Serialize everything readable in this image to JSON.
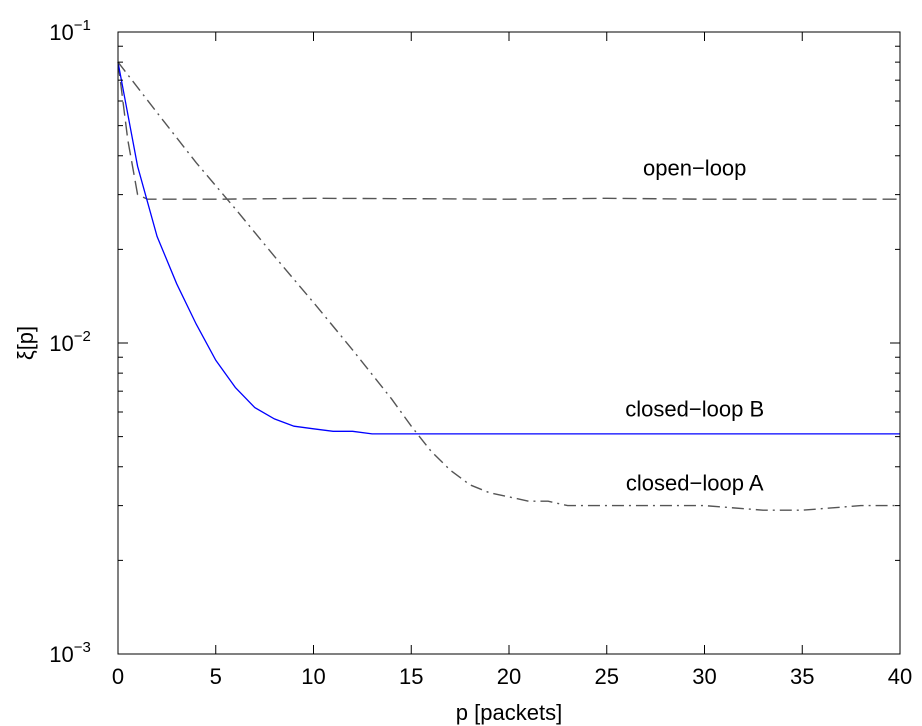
{
  "chart_data": {
    "type": "line",
    "title": "",
    "xlabel": "p [packets]",
    "ylabel": "ξ[p]",
    "xlim": [
      0,
      40
    ],
    "ylim": [
      0.001,
      0.1
    ],
    "yscale": "log",
    "grid": false,
    "legend": "none",
    "x_ticks": [
      0,
      5,
      10,
      15,
      20,
      25,
      30,
      35,
      40
    ],
    "x_tick_labels": [
      "0",
      "5",
      "10",
      "15",
      "20",
      "25",
      "30",
      "35",
      "40"
    ],
    "y_ticks": [
      0.001,
      0.01,
      0.1
    ],
    "y_tick_labels": [
      {
        "base": "10",
        "exp": "−3"
      },
      {
        "base": "10",
        "exp": "−2"
      },
      {
        "base": "10",
        "exp": "−1"
      }
    ],
    "series": [
      {
        "name": "open−loop",
        "color": "#555555",
        "dash": "dashed",
        "x": [
          0,
          0.5,
          1,
          1.5,
          2,
          5,
          10,
          15,
          20,
          25,
          30,
          35,
          40
        ],
        "y": [
          0.08,
          0.045,
          0.03,
          0.029,
          0.029,
          0.029,
          0.0292,
          0.0291,
          0.029,
          0.0292,
          0.029,
          0.029,
          0.029
        ]
      },
      {
        "name": "closed−loop B",
        "color": "#0000ff",
        "dash": "solid",
        "x": [
          0,
          1,
          2,
          3,
          4,
          5,
          6,
          7,
          8,
          9,
          10,
          11,
          12,
          13,
          14,
          15,
          17,
          20,
          23,
          25,
          28,
          30,
          33,
          35,
          38,
          40
        ],
        "y": [
          0.08,
          0.037,
          0.022,
          0.0155,
          0.0115,
          0.0088,
          0.0072,
          0.0062,
          0.0057,
          0.0054,
          0.0053,
          0.0052,
          0.0052,
          0.0051,
          0.0051,
          0.0051,
          0.0051,
          0.0051,
          0.0051,
          0.0051,
          0.0051,
          0.0051,
          0.0051,
          0.0051,
          0.0051,
          0.0051
        ]
      },
      {
        "name": "closed−loop A",
        "color": "#555555",
        "dash": "dashdot",
        "x": [
          0,
          2,
          4,
          6,
          8,
          10,
          12,
          14,
          15,
          16,
          17,
          18,
          19,
          20,
          21,
          22,
          23,
          25,
          28,
          30,
          33,
          35,
          38,
          40
        ],
        "y": [
          0.08,
          0.055,
          0.038,
          0.027,
          0.019,
          0.0135,
          0.0095,
          0.0066,
          0.0054,
          0.0045,
          0.0039,
          0.0035,
          0.0033,
          0.0032,
          0.0031,
          0.0031,
          0.003,
          0.003,
          0.003,
          0.003,
          0.0029,
          0.0029,
          0.003,
          0.003
        ]
      }
    ],
    "annotations": [
      {
        "text": "open−loop",
        "x": 29.5,
        "y": 0.0345
      },
      {
        "text": "closed−loop B",
        "x": 29.5,
        "y": 0.0058
      },
      {
        "text": "closed−loop A",
        "x": 29.5,
        "y": 0.00335
      }
    ]
  }
}
